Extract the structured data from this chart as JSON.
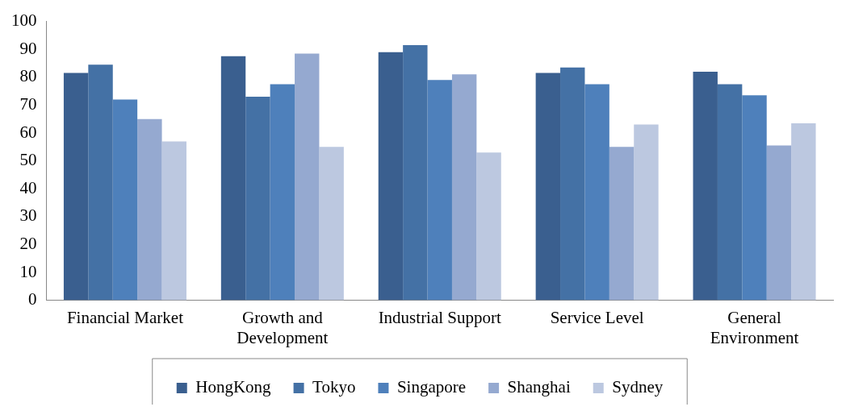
{
  "chart_data": {
    "type": "bar",
    "categories": [
      "Financial Market",
      "Growth and Development",
      "Industrial Support",
      "Service Level",
      "General Environment"
    ],
    "series": [
      {
        "name": "HongKong",
        "color": "#3a5f8f",
        "values": [
          81.5,
          87.5,
          89,
          81.5,
          82
        ]
      },
      {
        "name": "Tokyo",
        "color": "#4471a5",
        "values": [
          84.5,
          73,
          91.5,
          83.5,
          77.5
        ]
      },
      {
        "name": "Singapore",
        "color": "#4e80bb",
        "values": [
          72,
          77.5,
          79,
          77.5,
          73.5
        ]
      },
      {
        "name": "Shanghai",
        "color": "#95a9d0",
        "values": [
          65,
          88.5,
          81,
          55,
          55.5
        ]
      },
      {
        "name": "Sydney",
        "color": "#bcc8e0",
        "values": [
          57,
          55,
          53,
          63,
          63.5
        ]
      }
    ],
    "ylim": [
      0,
      100
    ],
    "yticks": [
      0,
      10,
      20,
      30,
      40,
      50,
      60,
      70,
      80,
      90,
      100
    ],
    "grid": false,
    "legend": "bottom"
  }
}
